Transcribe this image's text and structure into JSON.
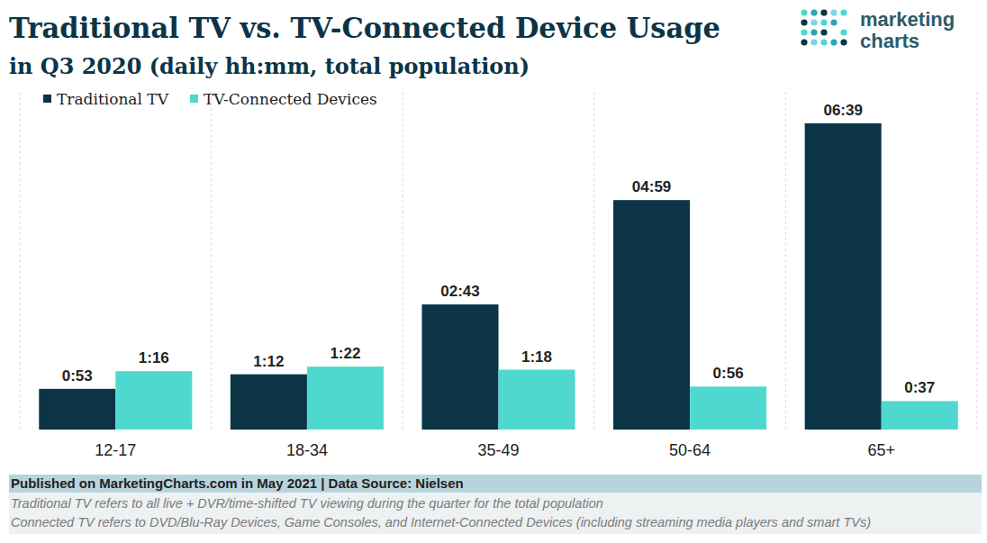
{
  "chart_data": {
    "type": "bar",
    "title": "Traditional TV vs. TV-Connected Device Usage",
    "subtitle": "in Q3 2020 (daily hh:mm, total population)",
    "categories": [
      "12-17",
      "18-34",
      "35-49",
      "50-64",
      "65+"
    ],
    "series": [
      {
        "name": "Traditional TV",
        "color": "#0b3546",
        "values": [
          53,
          72,
          163,
          299,
          399
        ],
        "value_labels": [
          "0:53",
          "1:12",
          "02:43",
          "04:59",
          "06:39"
        ]
      },
      {
        "name": "TV-Connected Devices",
        "color": "#4fd8cf",
        "values": [
          76,
          82,
          78,
          56,
          37
        ],
        "value_labels": [
          "1:16",
          "1:22",
          "1:18",
          "0:56",
          "0:37"
        ]
      }
    ],
    "ylim": [
      0,
      440
    ],
    "data_labels": true,
    "tick_labels": "x",
    "legend": "top-left",
    "source": "Published on MarketingCharts.com in May 2021 | Data Source: Nielsen",
    "notes": [
      "Traditional TV refers to all live + DVR/time-shifted TV viewing during the quarter for the total population",
      "Connected TV refers to DVD/Blu-Ray Devices, Game Consoles, and Internet-Connected Devices (including streaming media players and smart TVs)"
    ],
    "brand": [
      "marketing",
      "charts"
    ]
  }
}
